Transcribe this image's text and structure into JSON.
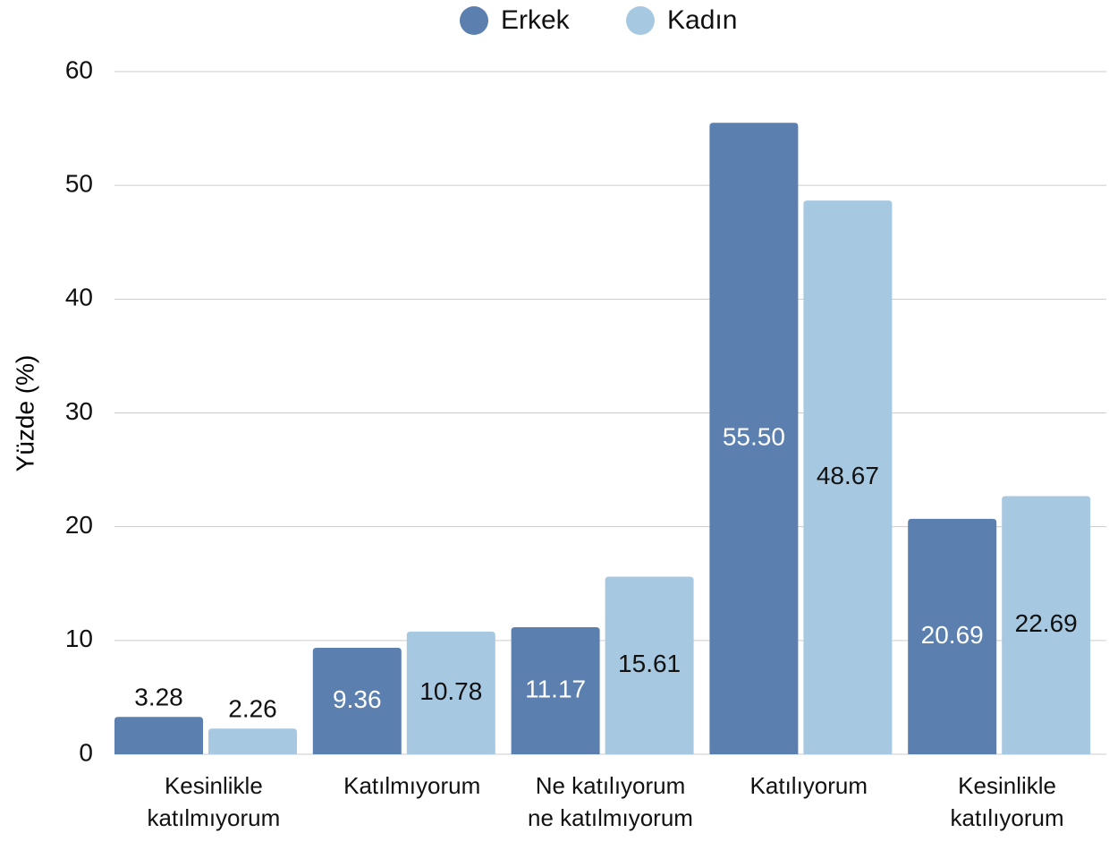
{
  "chart_data": {
    "type": "bar",
    "y_label": "Yüzde (%)",
    "categories": [
      "Kesinlikle katılmıyorum",
      "Katılmıyorum",
      "Ne katılıyorum ne katılmıyorum",
      "Katılıyorum",
      "Kesinlikle katılıyorum"
    ],
    "series": [
      {
        "name": "Erkek",
        "color": "#5b7faf",
        "values": [
          3.28,
          9.36,
          11.17,
          55.5,
          20.69
        ],
        "value_labels": [
          "3.28",
          "9.36",
          "11.17",
          "55.50",
          "20.69"
        ]
      },
      {
        "name": "Kadın",
        "color": "#a7c8e1",
        "values": [
          2.26,
          10.78,
          15.61,
          48.67,
          22.69
        ],
        "value_labels": [
          "2.26",
          "10.78",
          "15.61",
          "48.67",
          "22.69"
        ]
      }
    ],
    "ylim": [
      0,
      60
    ],
    "yticks": [
      0,
      10,
      20,
      30,
      40,
      50,
      60
    ],
    "grid": true,
    "legend": "top"
  }
}
